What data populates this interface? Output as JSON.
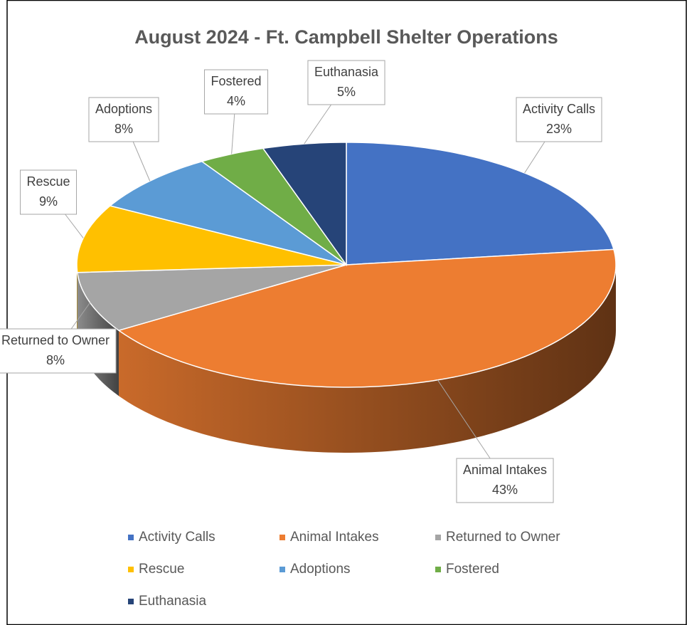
{
  "chart_data": {
    "type": "pie",
    "title": "August 2024 - Ft. Campbell Shelter Operations",
    "categories": [
      "Activity Calls",
      "Animal Intakes",
      "Returned to Owner",
      "Rescue",
      "Adoptions",
      "Fostered",
      "Euthanasia"
    ],
    "values": [
      23,
      43,
      8,
      9,
      8,
      4,
      5
    ],
    "value_labels": [
      "23%",
      "43%",
      "8%",
      "9%",
      "8%",
      "4%",
      "5%"
    ],
    "colors": [
      "#4472c4",
      "#ed7d31",
      "#a5a5a5",
      "#ffc000",
      "#5b9bd5",
      "#70ad47",
      "#264478"
    ],
    "legend": "bottom"
  }
}
